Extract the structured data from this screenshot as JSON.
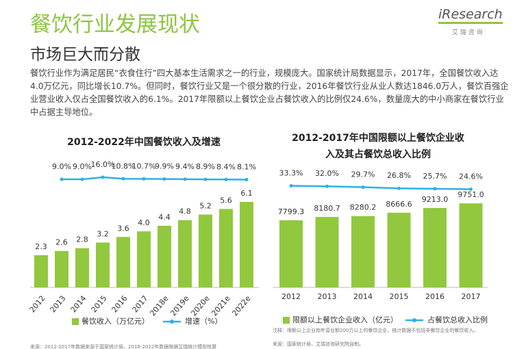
{
  "title": "餐饮行业发展现状",
  "subtitle": "市场巨大而分散",
  "logo": "iResearch",
  "logo_sub": "艾 瑞 咨 询",
  "body": "餐饮行业作为满足居民“衣食住行”四大基本生活需求之一的行业，规模庞大。国家统计局数据显示，2017年，全国餐饮收入达4.0万亿元，同比增长10.7%。但同时，餐饮行业又是一个很分散的行业，2016年餐饮行业从业人数达1846.0万人，餐饮百强企业营业收入仅占全国餐饮收入的6.1%。2017年限额以上餐饮企业占餐饮收入的比例仅24.6%，数量庞大的中小商家在餐饮行业中占据主导地位。",
  "chart_data": [
    {
      "type": "bar",
      "title": "2012-2022年中国餐饮收入及增速",
      "categories": [
        "2012",
        "2013",
        "2014",
        "2015",
        "2016",
        "2017",
        "2018e",
        "2019e",
        "2020e",
        "2021e",
        "2022e"
      ],
      "series": [
        {
          "name": "餐饮收入（万亿元）",
          "type": "bar",
          "color": "#92c83e",
          "values": [
            2.3,
            2.6,
            2.8,
            3.2,
            3.6,
            4.0,
            4.4,
            4.8,
            5.2,
            5.6,
            6.1
          ],
          "value_labels": [
            "2.3",
            "2.6",
            "2.8",
            "3.2",
            "3.6",
            "4.0",
            "4.4",
            "4.8",
            "5.2",
            "5.6",
            "6.1"
          ]
        },
        {
          "name": "增速（%）",
          "type": "line",
          "axis": "y2",
          "color": "#2eb0e6",
          "values": [
            null,
            9.0,
            9.0,
            16.0,
            10.8,
            10.7,
            9.9,
            9.4,
            8.9,
            8.4,
            8.1
          ],
          "value_labels": [
            null,
            "9.0%",
            "9.0%",
            "16.0%",
            "10.8%",
            "10.7%",
            "9.9%",
            "9.4%",
            "8.9%",
            "8.4%",
            "8.1%"
          ]
        }
      ],
      "ylim": [
        0,
        8.3
      ],
      "y2lim": [
        -358,
        37
      ],
      "notes": [
        "来源：2012-2017年数据来源于国家统计局，2018-2022年数据根据艾瑞统计模型核算"
      ]
    },
    {
      "type": "bar",
      "title": "2012-2017年中国限额以上餐饮企业收入及其占餐饮总收入比例",
      "categories": [
        "2012",
        "2013",
        "2014",
        "2015",
        "2016",
        "2017"
      ],
      "series": [
        {
          "name": "限额以上餐饮企业收入（亿元）",
          "type": "bar",
          "color": "#92c83e",
          "values": [
            7799.3,
            8180.7,
            8280.2,
            8666.6,
            9213.0,
            9751.0
          ],
          "value_labels": [
            "7799.3",
            "8180.7",
            "8280.2",
            "8666.6",
            "9213.0",
            "9751.0"
          ]
        },
        {
          "name": "占餐饮总收入比例",
          "type": "line",
          "axis": "y2",
          "color": "#2eb0e6",
          "values": [
            33.3,
            32.0,
            29.7,
            26.8,
            25.7,
            24.6
          ],
          "value_labels": [
            "33.3%",
            "32.0%",
            "29.7%",
            "26.8%",
            "25.7%",
            "24.6%"
          ]
        }
      ],
      "ylim": [
        0,
        13500
      ],
      "y2lim": [
        -227,
        71
      ],
      "notes": [
        "注释：限额以上企业指年营业额200万以上的餐饮企业，统计数据不包括非餐饮企业的餐饮收入。",
        "来源：国家统计局，艾瑞咨询研究院自制。"
      ]
    }
  ]
}
